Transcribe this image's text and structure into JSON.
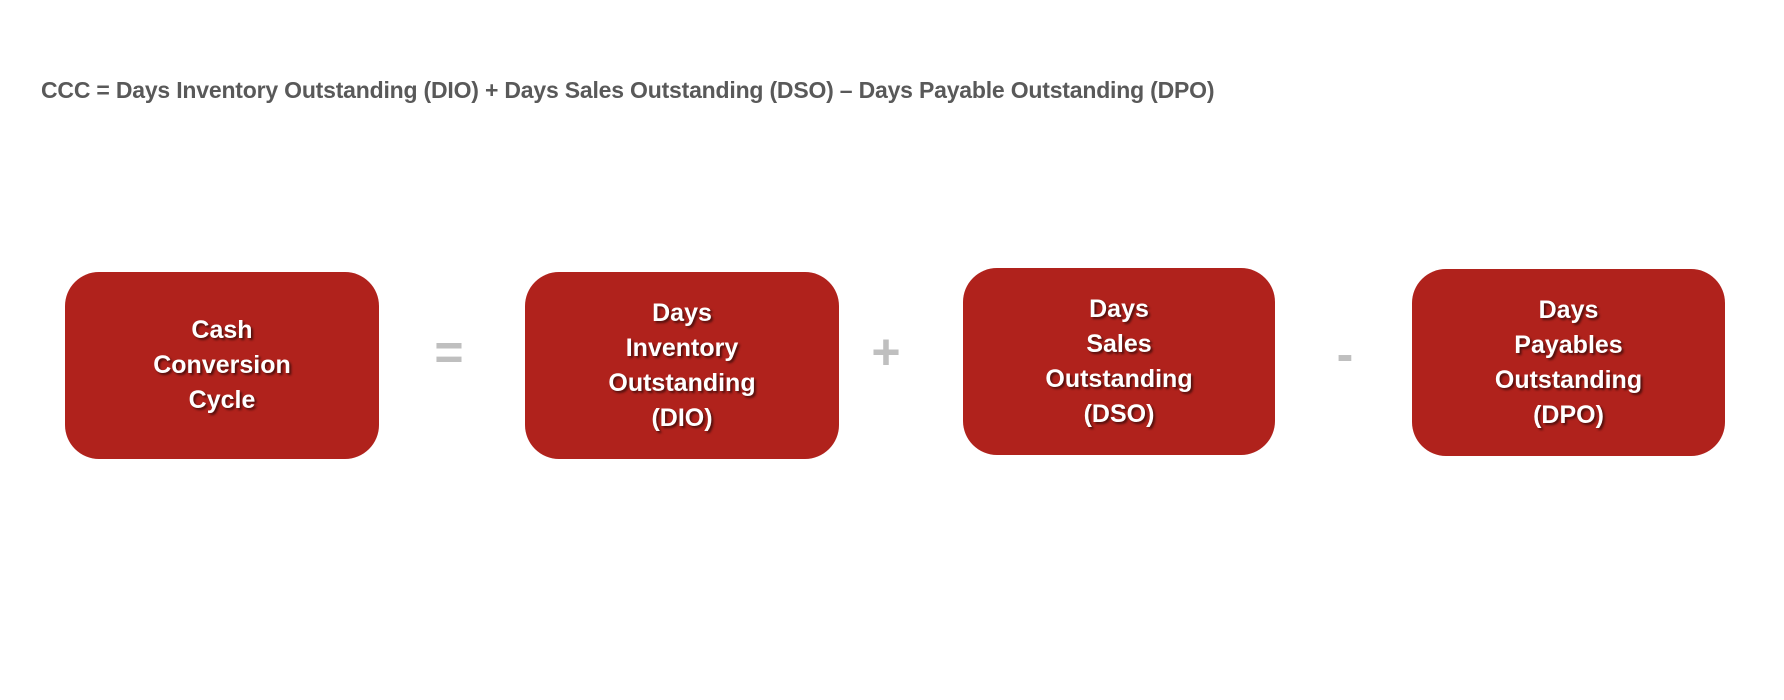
{
  "formula": "CCC = Days Inventory Outstanding (DIO) + Days Sales Outstanding (DSO) – Days Payable Outstanding (DPO)",
  "boxes": [
    {
      "lines": [
        "Cash",
        "Conversion",
        "Cycle"
      ]
    },
    {
      "lines": [
        "Days",
        "Inventory",
        "Outstanding",
        "(DIO)"
      ]
    },
    {
      "lines": [
        "Days",
        "Sales",
        "Outstanding",
        "(DSO)"
      ]
    },
    {
      "lines": [
        "Days",
        "Payables",
        "Outstanding",
        "(DPO)"
      ]
    }
  ],
  "operators": [
    "=",
    "+",
    "-"
  ],
  "colors": {
    "box_fill": "#b0221c",
    "operator": "#bfbfbf",
    "formula_text": "#595959"
  }
}
